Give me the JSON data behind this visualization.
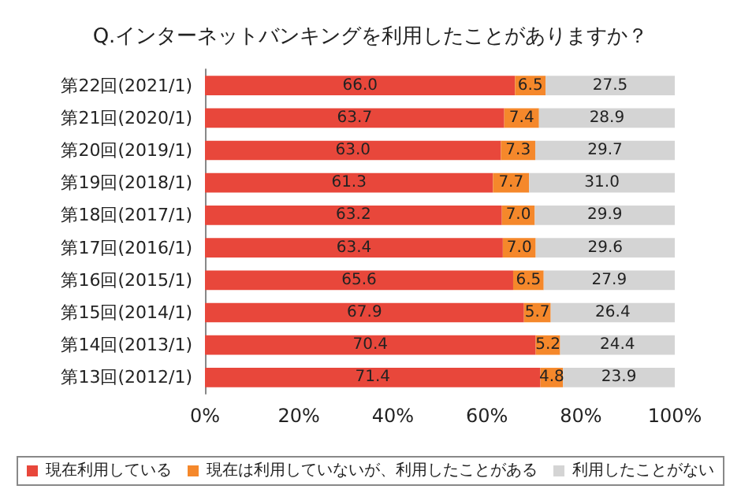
{
  "chart_data": {
    "type": "bar",
    "orientation": "horizontal",
    "stacked": true,
    "title": "Q.インターネットバンキングを利用したことがありますか？",
    "categories": [
      "第22回(2021/1)",
      "第21回(2020/1)",
      "第20回(2019/1)",
      "第19回(2018/1)",
      "第18回(2017/1)",
      "第17回(2016/1)",
      "第16回(2015/1)",
      "第15回(2014/1)",
      "第14回(2013/1)",
      "第13回(2012/1)"
    ],
    "series": [
      {
        "name": "現在利用している",
        "color": "#e8473b",
        "values": [
          66.0,
          63.7,
          63.0,
          61.3,
          63.2,
          63.4,
          65.6,
          67.9,
          70.4,
          71.4
        ],
        "value_labels": [
          "66.0",
          "63.7",
          "63.0",
          "61.3",
          "63.2",
          "63.4",
          "65.6",
          "67.9",
          "70.4",
          "71.4"
        ]
      },
      {
        "name": "現在は利用していないが、利用したことがある",
        "color": "#f5882b",
        "values": [
          6.5,
          7.4,
          7.3,
          7.7,
          7.0,
          7.0,
          6.5,
          5.7,
          5.2,
          4.8
        ],
        "value_labels": [
          "6.5",
          "7.4",
          "7.3",
          "7.7",
          "7.0",
          "7.0",
          "6.5",
          "5.7",
          "5.2",
          "4.8"
        ]
      },
      {
        "name": "利用したことがない",
        "color": "#d4d4d4",
        "values": [
          27.5,
          28.9,
          29.7,
          31.0,
          29.9,
          29.6,
          27.9,
          26.4,
          24.4,
          23.9
        ],
        "value_labels": [
          "27.5",
          "28.9",
          "29.7",
          "31.0",
          "29.9",
          "29.6",
          "27.9",
          "26.4",
          "24.4",
          "23.9"
        ]
      }
    ],
    "xlim": [
      0,
      100
    ],
    "xticks": [
      {
        "value": 0,
        "label": "0%"
      },
      {
        "value": 20,
        "label": "20%"
      },
      {
        "value": 40,
        "label": "40%"
      },
      {
        "value": 60,
        "label": "60%"
      },
      {
        "value": 80,
        "label": "80%"
      },
      {
        "value": 100,
        "label": "100%"
      }
    ],
    "grid": false,
    "legend": "bottom"
  }
}
